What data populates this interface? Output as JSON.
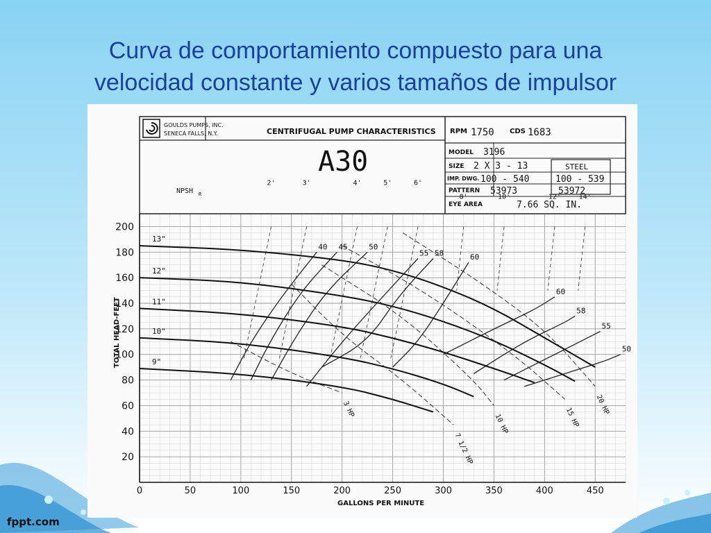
{
  "slide": {
    "title_line1": "Curva de comportamiento compuesto para una",
    "title_line2": "velocidad constante y varios tamaños de impulsor",
    "brand": "fppt.com",
    "colors": {
      "title": "#1a3f9c",
      "background_top": "#89d3f3",
      "wave": "#2a8fd0"
    }
  },
  "chart_data": {
    "type": "line",
    "header": {
      "company_line1": "GOULDS PUMPS, INC.",
      "company_line2": "SENECA FALLS, N.Y.",
      "heading": "CENTRIFUGAL PUMP CHARACTERISTICS",
      "curve_no": "A30",
      "rpm_label": "RPM",
      "rpm": "1750",
      "cds_label": "CDS",
      "cds": "1683",
      "model_label": "MODEL",
      "model": "3196",
      "size_label": "SIZE",
      "size": "2 X 3 - 13",
      "material": "STEEL",
      "imp_dwg_label": "IMP. DWG.",
      "imp_dwg": "100 - 540",
      "imp_dwg2": "100 - 539",
      "pattern_label": "PATTERN",
      "pattern": "53973",
      "pattern2": "53972",
      "eye_area_label": "EYE AREA",
      "eye_area": "7.66 SQ. IN."
    },
    "xlabel": "GALLONS PER MINUTE",
    "ylabel": "TOTAL HEAD-FEET",
    "xlim": [
      0,
      480
    ],
    "ylim": [
      0,
      210
    ],
    "xticks": [
      "0",
      "50",
      "100",
      "150",
      "200",
      "250",
      "300",
      "350",
      "400",
      "450"
    ],
    "yticks": [
      "20",
      "40",
      "60",
      "80",
      "100",
      "120",
      "140",
      "160",
      "180",
      "200"
    ],
    "grid": true,
    "legend": "none",
    "series": [
      {
        "name": "13\"",
        "x": [
          0,
          100,
          200,
          250,
          300,
          350,
          400,
          450
        ],
        "y": [
          185,
          182,
          174,
          166,
          153,
          136,
          113,
          90
        ]
      },
      {
        "name": "12\"",
        "x": [
          0,
          100,
          200,
          250,
          300,
          350,
          400,
          430
        ],
        "y": [
          160,
          157,
          146,
          138,
          126,
          111,
          92,
          79
        ]
      },
      {
        "name": "11\"",
        "x": [
          0,
          100,
          200,
          250,
          300,
          350,
          390
        ],
        "y": [
          136,
          132,
          122,
          113,
          102,
          89,
          78
        ]
      },
      {
        "name": "10\"",
        "x": [
          0,
          100,
          200,
          250,
          300,
          330
        ],
        "y": [
          113,
          109,
          98,
          89,
          77,
          67
        ]
      },
      {
        "name": "9\"",
        "x": [
          0,
          100,
          200,
          250,
          290
        ],
        "y": [
          89,
          85,
          75,
          65,
          55
        ]
      }
    ],
    "efficiency_curves": [
      {
        "name": "40",
        "x": [
          90,
          110,
          140,
          175
        ],
        "y": [
          80,
          110,
          145,
          180
        ]
      },
      {
        "name": "45",
        "x": [
          110,
          130,
          160,
          195
        ],
        "y": [
          80,
          112,
          150,
          180
        ]
      },
      {
        "name": "50",
        "x": [
          130,
          155,
          185,
          225
        ],
        "y": [
          80,
          115,
          150,
          180
        ]
      },
      {
        "name": "55",
        "x": [
          165,
          200,
          240,
          275
        ],
        "y": [
          75,
          110,
          145,
          175
        ]
      },
      {
        "name": "58",
        "x": [
          180,
          225,
          255,
          290
        ],
        "y": [
          90,
          110,
          145,
          175
        ]
      },
      {
        "name": "60",
        "x": [
          250,
          275,
          300,
          325
        ],
        "y": [
          90,
          110,
          140,
          172
        ]
      },
      {
        "name": "60",
        "x": [
          300,
          350,
          390,
          410
        ],
        "y": [
          100,
          120,
          135,
          145
        ]
      },
      {
        "name": "58",
        "x": [
          330,
          380,
          420,
          430
        ],
        "y": [
          85,
          110,
          125,
          130
        ]
      },
      {
        "name": "55",
        "x": [
          360,
          410,
          440,
          455
        ],
        "y": [
          80,
          100,
          112,
          118
        ]
      },
      {
        "name": "50",
        "x": [
          380,
          440,
          460,
          475
        ],
        "y": [
          75,
          90,
          95,
          100
        ]
      }
    ],
    "power_curves": [
      {
        "name": "3 HP",
        "x": [
          90,
          150,
          200
        ],
        "y": [
          110,
          85,
          70
        ]
      },
      {
        "name": "7 1/2 HP",
        "x": [
          150,
          200,
          260,
          310
        ],
        "y": [
          155,
          115,
          80,
          45
        ]
      },
      {
        "name": "10 HP",
        "x": [
          180,
          260,
          330,
          350
        ],
        "y": [
          170,
          130,
          80,
          60
        ]
      },
      {
        "name": "15 HP",
        "x": [
          200,
          280,
          370,
          420
        ],
        "y": [
          185,
          150,
          100,
          65
        ]
      },
      {
        "name": "20 HP",
        "x": [
          260,
          330,
          400,
          450
        ],
        "y": [
          195,
          160,
          120,
          75
        ]
      }
    ],
    "npsh_lines": [
      {
        "name": "2'",
        "x": 130
      },
      {
        "name": "3'",
        "x": 165
      },
      {
        "name": "4'",
        "x": 215
      },
      {
        "name": "5'",
        "x": 245
      },
      {
        "name": "6'",
        "x": 275
      },
      {
        "name": "8'",
        "x": 320
      },
      {
        "name": "10'",
        "x": 360
      },
      {
        "name": "12'",
        "x": 410
      },
      {
        "name": "14'",
        "x": 440
      }
    ],
    "annotations": {
      "npsh_label": "NPSH",
      "npsh_sub": "R",
      "impeller_labels": [
        "13\"",
        "12\"",
        "11\"",
        "10\"",
        "9\""
      ],
      "efficiency_labels": [
        "40",
        "45",
        "50",
        "55",
        "58",
        "60",
        "60",
        "58",
        "55",
        "50"
      ],
      "hp_labels": [
        "3 HP",
        "7 1/2 HP",
        "10 HP",
        "15 HP",
        "20 HP"
      ],
      "npsh_values": [
        "2'",
        "3'",
        "4'",
        "5'",
        "6'",
        "8'",
        "10'",
        "12'",
        "14'"
      ]
    }
  }
}
